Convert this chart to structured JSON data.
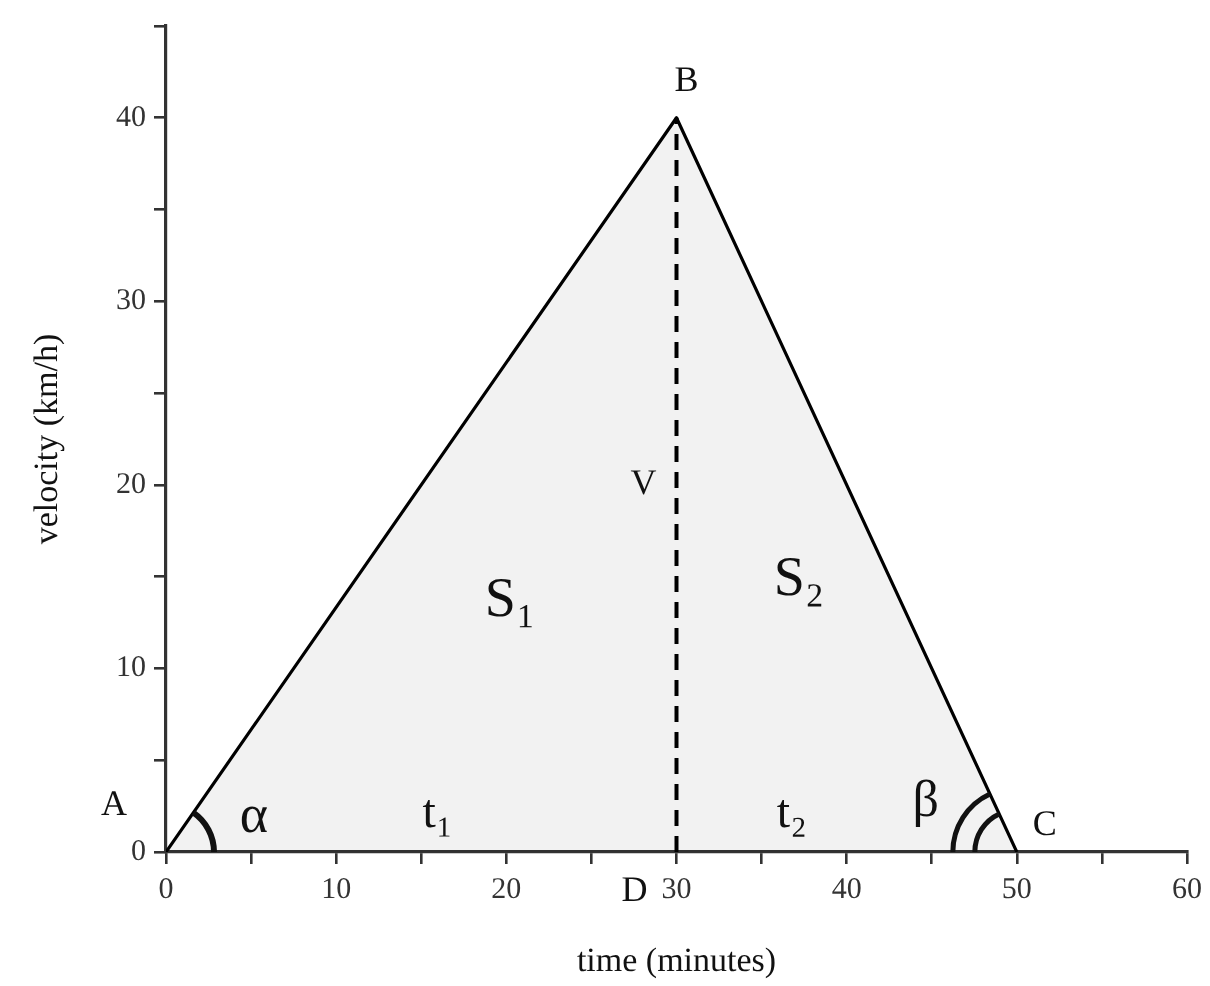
{
  "chart_data": {
    "type": "area",
    "xlabel": "time (minutes)",
    "ylabel": "velocity (km/h)",
    "marker": "none",
    "xlim": [
      0,
      60
    ],
    "ylim": [
      0,
      45
    ],
    "xticks": [
      0,
      {
        "value": 5,
        "label": null
      },
      10,
      {
        "value": 15,
        "label": null
      },
      20,
      {
        "value": 25,
        "label": null
      },
      30,
      {
        "value": 35,
        "label": null
      },
      40,
      {
        "value": 45,
        "label": null
      },
      50,
      {
        "value": 55,
        "label": null
      },
      60
    ],
    "yticks": [
      0,
      {
        "value": 5,
        "label": null
      },
      10,
      {
        "value": 15,
        "label": null
      },
      20,
      {
        "value": 25,
        "label": null
      },
      30,
      {
        "value": 35,
        "label": null
      },
      40,
      {
        "value": 45,
        "label": null
      }
    ],
    "series": [
      {
        "color": "#000000",
        "x": [
          0,
          30,
          50
        ],
        "values": [
          0,
          40,
          0
        ]
      }
    ],
    "ref_lines": [
      {
        "axis": "x",
        "value": 30,
        "label": "V",
        "color": "#000000",
        "line_style": "dashed"
      }
    ],
    "annotations": [
      {
        "text": "A",
        "x": 0,
        "y": 0
      },
      {
        "text": "B",
        "x": 30,
        "y": 40
      },
      {
        "text": "C",
        "x": 50,
        "y": 0
      },
      {
        "text": "D",
        "x": 30,
        "y": 0
      },
      "S₁",
      "S₂",
      "t₁",
      "t₂",
      "α",
      "β"
    ]
  }
}
